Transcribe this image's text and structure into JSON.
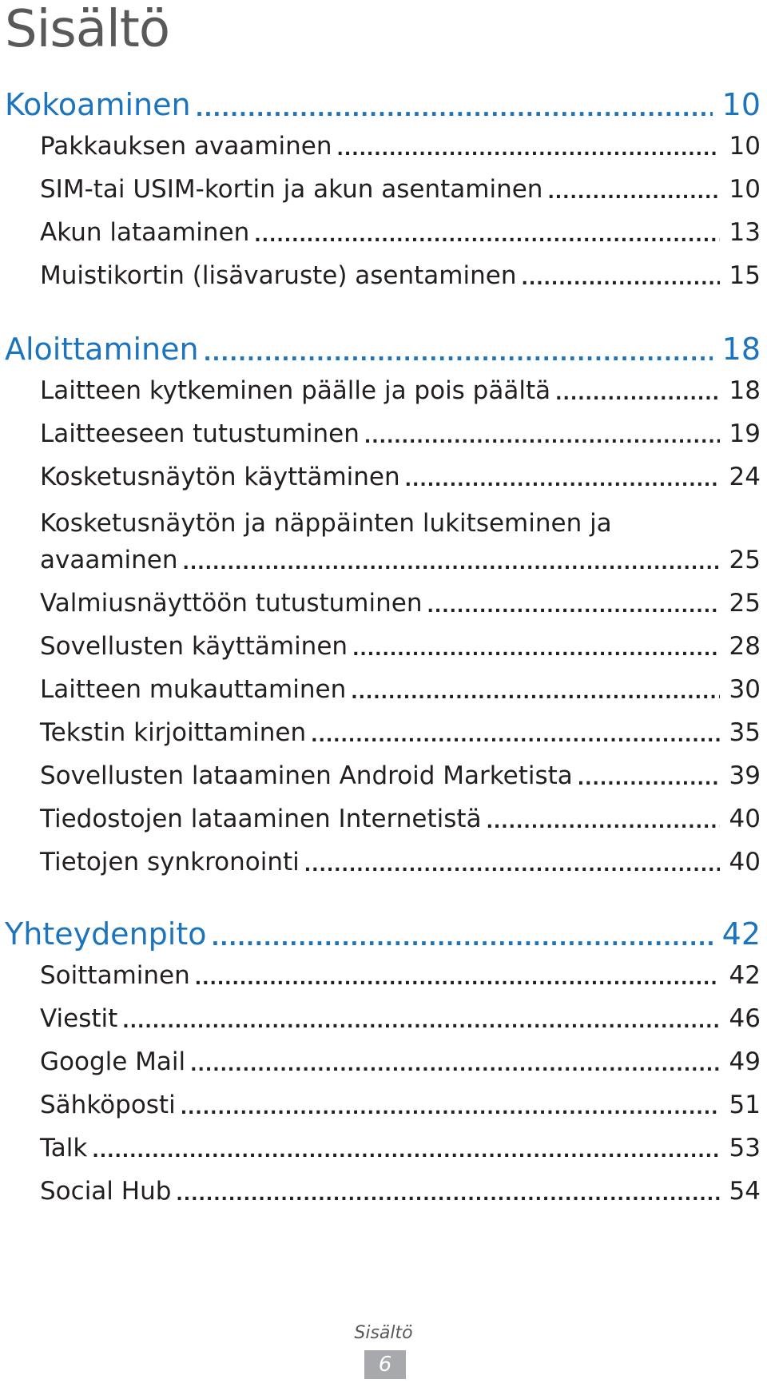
{
  "page_title": "Sisältö",
  "leader_dots": "........................................................................................................................................",
  "chapters": [
    {
      "title": "Kokoaminen",
      "page": "10",
      "sections": [
        {
          "title": "Pakkauksen avaaminen",
          "page": "10"
        },
        {
          "title": "SIM-tai USIM-kortin ja akun asentaminen",
          "page": "10"
        },
        {
          "title": "Akun lataaminen",
          "page": "13"
        },
        {
          "title": "Muistikortin (lisävaruste) asentaminen",
          "page": "15"
        }
      ]
    },
    {
      "title": "Aloittaminen",
      "page": "18",
      "sections": [
        {
          "title": "Laitteen kytkeminen päälle ja pois päältä",
          "page": "18"
        },
        {
          "title": "Laitteeseen tutustuminen",
          "page": "19"
        },
        {
          "title": "Kosketusnäytön käyttäminen",
          "page": "24"
        },
        {
          "title_line1": "Kosketusnäytön ja näppäinten lukitseminen ja",
          "title": "avaaminen",
          "page": "25"
        },
        {
          "title": "Valmiusnäyttöön tutustuminen",
          "page": "25"
        },
        {
          "title": "Sovellusten käyttäminen",
          "page": "28"
        },
        {
          "title": "Laitteen mukauttaminen",
          "page": "30"
        },
        {
          "title": "Tekstin kirjoittaminen",
          "page": "35"
        },
        {
          "title": "Sovellusten lataaminen Android Marketista",
          "page": "39"
        },
        {
          "title": "Tiedostojen lataaminen Internetistä",
          "page": "40"
        },
        {
          "title": "Tietojen synkronointi",
          "page": "40"
        }
      ]
    },
    {
      "title": "Yhteydenpito",
      "page": "42",
      "sections": [
        {
          "title": "Soittaminen",
          "page": "42"
        },
        {
          "title": "Viestit",
          "page": "46"
        },
        {
          "title": "Google Mail",
          "page": "49"
        },
        {
          "title": "Sähköposti",
          "page": "51"
        },
        {
          "title": "Talk",
          "page": "53"
        },
        {
          "title": "Social Hub",
          "page": "54"
        }
      ]
    }
  ],
  "footer": {
    "section_label": "Sisältö",
    "page_number": "6"
  }
}
